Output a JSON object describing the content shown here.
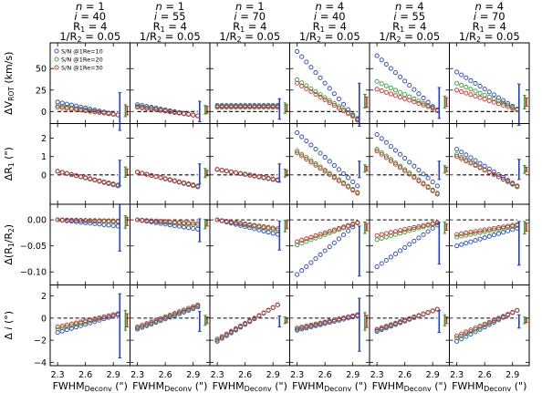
{
  "chart_data": {
    "type": "scatter",
    "layout": "4 rows x 6 columns of panels",
    "columns": [
      {
        "title_lines": [
          "n = 1",
          "i = 40",
          "R1 = 4",
          "1/R2 = 0.05"
        ]
      },
      {
        "title_lines": [
          "n = 1",
          "i = 55",
          "R1 = 4",
          "1/R2 = 0.05"
        ]
      },
      {
        "title_lines": [
          "n = 1",
          "i = 70",
          "R1 = 4",
          "1/R2 = 0.05"
        ]
      },
      {
        "title_lines": [
          "n = 4",
          "i = 40",
          "R1 = 4",
          "1/R2 = 0.05"
        ]
      },
      {
        "title_lines": [
          "n = 4",
          "i = 55",
          "R1 = 4",
          "1/R2 = 0.05"
        ]
      },
      {
        "title_lines": [
          "n = 4",
          "i = 70",
          "R1 = 4",
          "1/R2 = 0.05"
        ]
      }
    ],
    "x": {
      "label": "FWHM_Deconv (\")",
      "label_main": "FWHM",
      "label_sub": "Deconv",
      "label_unit": "(\")",
      "range": [
        2.22,
        3.08
      ],
      "data_range": [
        2.3,
        2.95
      ],
      "n_points": 14,
      "ticks": [
        2.3,
        2.6,
        2.9
      ],
      "tick_labels": [
        "2.3",
        "2.6",
        "2.9"
      ]
    },
    "legend": {
      "placement": "upper-left of first panel",
      "entries": [
        {
          "label": "S/N @1Re=10",
          "color": "#1f3fd8"
        },
        {
          "label": "S/N @1Re=20",
          "color": "#2ca02c"
        },
        {
          "label": "S/N @1Re=30",
          "color": "#d62728"
        }
      ]
    },
    "series_colors": [
      "#1f3fd8",
      "#2ca02c",
      "#d62728"
    ],
    "reference_line": {
      "y": 0,
      "style": "dashed"
    },
    "rows": [
      {
        "ylabel": "ΔV_ROT (km/s)",
        "ylim": [
          -14,
          80
        ],
        "yticks": [
          0,
          25,
          50
        ],
        "ytick_labels": [
          "0",
          "25",
          "50"
        ],
        "panels": [
          {
            "series": [
              [
                11,
                -4
              ],
              [
                7,
                -4
              ],
              [
                5,
                -4
              ]
            ],
            "errorbars": [
              {
                "center": 0,
                "half": 22
              },
              {
                "center": 1,
                "half": 7
              },
              {
                "center": 1,
                "half": 5
              }
            ]
          },
          {
            "series": [
              [
                8,
                -5
              ],
              [
                6,
                -5
              ],
              [
                5,
                -5
              ]
            ],
            "errorbars": [
              {
                "center": 0,
                "half": 12
              },
              {
                "center": 2,
                "half": 5
              },
              {
                "center": 2,
                "half": 4
              }
            ]
          },
          {
            "series": [
              [
                7,
                7
              ],
              [
                6,
                6
              ],
              [
                5,
                5
              ]
            ],
            "errorbars": [
              {
                "center": 3,
                "half": 12
              },
              {
                "center": 4,
                "half": 6
              },
              {
                "center": 4,
                "half": 4
              }
            ]
          },
          {
            "series": [
              [
                70,
                -10
              ],
              [
                37,
                -8
              ],
              [
                33,
                -9
              ]
            ],
            "errorbars": [
              {
                "center": 8,
                "half": 25
              },
              {
                "center": 12,
                "half": 8
              },
              {
                "center": 11,
                "half": 6
              }
            ]
          },
          {
            "series": [
              [
                65,
                1
              ],
              [
                35,
                2
              ],
              [
                26,
                2
              ]
            ],
            "errorbars": [
              {
                "center": 10,
                "half": 18
              },
              {
                "center": 11,
                "half": 7
              },
              {
                "center": 11,
                "half": 5
              }
            ]
          },
          {
            "series": [
              [
                46,
                3
              ],
              [
                33,
                3
              ],
              [
                25,
                2
              ]
            ],
            "errorbars": [
              {
                "center": 8,
                "half": 24
              },
              {
                "center": 11,
                "half": 8
              },
              {
                "center": 11,
                "half": 5
              }
            ]
          }
        ]
      },
      {
        "ylabel": "ΔR_1 (\")",
        "ylim": [
          -1.6,
          2.8
        ],
        "yticks": [
          0,
          1,
          2
        ],
        "ytick_labels": [
          "0",
          "1",
          "2"
        ],
        "panels": [
          {
            "series": [
              [
                0.2,
                -0.6
              ],
              [
                0.2,
                -0.58
              ],
              [
                0.2,
                -0.55
              ]
            ],
            "errorbars": [
              {
                "center": 0.1,
                "half": 0.7
              },
              {
                "center": 0.15,
                "half": 0.28
              },
              {
                "center": 0.15,
                "half": 0.18
              }
            ]
          },
          {
            "series": [
              [
                0.15,
                -0.65
              ],
              [
                0.15,
                -0.63
              ],
              [
                0.15,
                -0.6
              ]
            ],
            "errorbars": [
              {
                "center": 0.05,
                "half": 0.55
              },
              {
                "center": 0.1,
                "half": 0.25
              },
              {
                "center": 0.1,
                "half": 0.15
              }
            ]
          },
          {
            "series": [
              [
                0.3,
                -0.3
              ],
              [
                0.3,
                -0.28
              ],
              [
                0.3,
                -0.26
              ]
            ],
            "errorbars": [
              {
                "center": 0.1,
                "half": 0.5
              },
              {
                "center": 0.1,
                "half": 0.22
              },
              {
                "center": 0.1,
                "half": 0.15
              }
            ]
          },
          {
            "series": [
              [
                2.3,
                -0.6
              ],
              [
                1.3,
                -0.95
              ],
              [
                1.2,
                -1.0
              ]
            ],
            "errorbars": [
              {
                "center": 0.3,
                "half": 0.45
              },
              {
                "center": 0.35,
                "half": 0.2
              },
              {
                "center": 0.35,
                "half": 0.12
              }
            ]
          },
          {
            "series": [
              [
                2.2,
                -0.6
              ],
              [
                1.4,
                -1.0
              ],
              [
                1.3,
                -1.05
              ]
            ],
            "errorbars": [
              {
                "center": 0.25,
                "half": 0.5
              },
              {
                "center": 0.3,
                "half": 0.2
              },
              {
                "center": 0.3,
                "half": 0.12
              }
            ]
          },
          {
            "series": [
              [
                1.4,
                -0.6
              ],
              [
                1.1,
                -0.65
              ],
              [
                1.0,
                -0.6
              ]
            ],
            "errorbars": [
              {
                "center": 0.3,
                "half": 0.55
              },
              {
                "center": 0.3,
                "half": 0.22
              },
              {
                "center": 0.3,
                "half": 0.12
              }
            ]
          }
        ]
      },
      {
        "ylabel": "Δ(R_1/R_2)",
        "ylim": [
          -0.125,
          0.03
        ],
        "yticks": [
          0.0,
          -0.05,
          -0.1
        ],
        "ytick_labels": [
          "0.00",
          "−0.05",
          "−0.10"
        ],
        "panels": [
          {
            "series": [
              [
                0.0,
                -0.012
              ],
              [
                0.0,
                -0.004
              ],
              [
                0.0,
                -0.002
              ]
            ],
            "errorbars": [
              {
                "center": -0.015,
                "half": 0.045
              },
              {
                "center": -0.004,
                "half": 0.012
              },
              {
                "center": -0.003,
                "half": 0.008
              }
            ]
          },
          {
            "series": [
              [
                0.0,
                -0.018
              ],
              [
                0.0,
                -0.01
              ],
              [
                0.0,
                -0.007
              ]
            ],
            "errorbars": [
              {
                "center": -0.02,
                "half": 0.022
              },
              {
                "center": -0.008,
                "half": 0.009
              },
              {
                "center": -0.006,
                "half": 0.006
              }
            ]
          },
          {
            "series": [
              [
                0.0,
                -0.028
              ],
              [
                0.0,
                -0.02
              ],
              [
                0.0,
                -0.017
              ]
            ],
            "errorbars": [
              {
                "center": -0.03,
                "half": 0.028
              },
              {
                "center": -0.012,
                "half": 0.011
              },
              {
                "center": -0.01,
                "half": 0.007
              }
            ]
          },
          {
            "series": [
              [
                -0.105,
                -0.006
              ],
              [
                -0.048,
                -0.006
              ],
              [
                -0.042,
                -0.005
              ]
            ],
            "errorbars": [
              {
                "center": -0.06,
                "half": 0.048
              },
              {
                "center": -0.015,
                "half": 0.011
              },
              {
                "center": -0.014,
                "half": 0.007
              }
            ]
          },
          {
            "series": [
              [
                -0.09,
                -0.01
              ],
              [
                -0.038,
                -0.006
              ],
              [
                -0.03,
                -0.005
              ]
            ],
            "errorbars": [
              {
                "center": -0.045,
                "half": 0.04
              },
              {
                "center": -0.015,
                "half": 0.011
              },
              {
                "center": -0.014,
                "half": 0.006
              }
            ]
          },
          {
            "series": [
              [
                -0.05,
                -0.016
              ],
              [
                -0.033,
                -0.011
              ],
              [
                -0.028,
                -0.009
              ]
            ],
            "errorbars": [
              {
                "center": -0.045,
                "half": 0.042
              },
              {
                "center": -0.015,
                "half": 0.012
              },
              {
                "center": -0.014,
                "half": 0.008
              }
            ]
          }
        ]
      },
      {
        "ylabel": "Δ i (°)",
        "ylim": [
          -4.3,
          3.0
        ],
        "yticks": [
          2,
          0,
          -2,
          -4
        ],
        "ytick_labels": [
          "2",
          "0",
          "−2",
          "−4"
        ],
        "panels": [
          {
            "series": [
              [
                -1.3,
                0.3
              ],
              [
                -1.0,
                0.4
              ],
              [
                -0.8,
                0.4
              ]
            ],
            "errorbars": [
              {
                "center": -0.7,
                "half": 2.9
              },
              {
                "center": -0.2,
                "half": 0.9
              },
              {
                "center": -0.2,
                "half": 0.6
              }
            ]
          },
          {
            "series": [
              [
                -1.0,
                1.0
              ],
              [
                -0.9,
                1.1
              ],
              [
                -0.8,
                1.2
              ]
            ],
            "errorbars": [
              {
                "center": -0.3,
                "half": 0.9
              },
              {
                "center": -0.2,
                "half": 0.45
              },
              {
                "center": -0.2,
                "half": 0.3
              }
            ]
          },
          {
            "series": [
              [
                -2.1,
                1.2
              ],
              [
                -2.0,
                1.2
              ],
              [
                -1.9,
                1.2
              ]
            ],
            "errorbars": [
              {
                "center": -0.3,
                "half": 0.5
              },
              {
                "center": -0.2,
                "half": 0.3
              },
              {
                "center": -0.2,
                "half": 0.2
              }
            ]
          },
          {
            "series": [
              [
                -1.1,
                0.2
              ],
              [
                -1.0,
                0.3
              ],
              [
                -0.9,
                0.3
              ]
            ],
            "errorbars": [
              {
                "center": -0.6,
                "half": 2.4
              },
              {
                "center": -0.3,
                "half": 0.8
              },
              {
                "center": -0.3,
                "half": 0.55
              }
            ]
          },
          {
            "series": [
              [
                -1.2,
                0.8
              ],
              [
                -1.1,
                0.8
              ],
              [
                -1.0,
                0.8
              ]
            ],
            "errorbars": [
              {
                "center": -0.3,
                "half": 1.0
              },
              {
                "center": -0.2,
                "half": 0.5
              },
              {
                "center": -0.2,
                "half": 0.3
              }
            ]
          },
          {
            "series": [
              [
                -2.1,
                0.7
              ],
              [
                -1.8,
                0.7
              ],
              [
                -1.6,
                0.7
              ]
            ],
            "errorbars": [
              {
                "center": -0.3,
                "half": 0.6
              },
              {
                "center": -0.2,
                "half": 0.3
              },
              {
                "center": -0.2,
                "half": 0.2
              }
            ]
          }
        ]
      }
    ]
  }
}
